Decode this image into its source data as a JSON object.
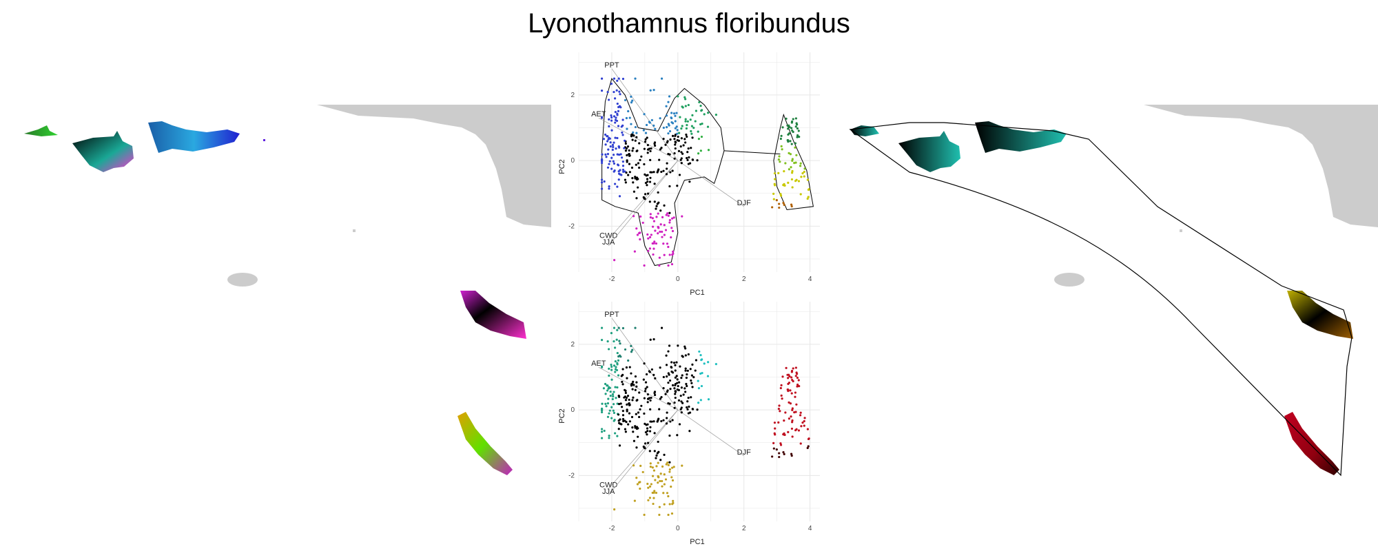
{
  "title": "Lyonothamnus floribundus",
  "chart_data": [
    {
      "type": "scatter",
      "panel": "top",
      "title": "",
      "xlabel": "PC1",
      "ylabel": "PC2",
      "xlim": [
        -3,
        4.3
      ],
      "ylim": [
        -3.4,
        3.3
      ],
      "xticks": [
        "-2",
        "0",
        "2",
        "4"
      ],
      "yticks": [
        "2",
        "0",
        "-2"
      ],
      "grid": true,
      "loadings": [
        {
          "label": "PPT",
          "x": -2.0,
          "y": 2.8
        },
        {
          "label": "AET",
          "x": -2.4,
          "y": 1.3
        },
        {
          "label": "DJF",
          "x": 2.0,
          "y": -1.4
        },
        {
          "label": "CWD",
          "x": -2.1,
          "y": -2.4
        },
        {
          "label": "JJA",
          "x": -2.1,
          "y": -2.6
        }
      ],
      "clusters": [
        {
          "name": "main",
          "cx": -0.8,
          "cy": 0.3,
          "points": 420
        },
        {
          "name": "east",
          "cx": 3.5,
          "cy": 0.2,
          "points": 90
        }
      ]
    },
    {
      "type": "scatter",
      "panel": "bottom",
      "title": "",
      "xlabel": "PC1",
      "ylabel": "PC2",
      "xlim": [
        -3,
        4.3
      ],
      "ylim": [
        -3.4,
        3.3
      ],
      "xticks": [
        "-2",
        "0",
        "2",
        "4"
      ],
      "yticks": [
        "2",
        "0",
        "-2"
      ],
      "grid": true,
      "loadings": [
        {
          "label": "PPT",
          "x": -2.0,
          "y": 2.8
        },
        {
          "label": "AET",
          "x": -2.4,
          "y": 1.3
        },
        {
          "label": "DJF",
          "x": 2.0,
          "y": -1.4
        },
        {
          "label": "CWD",
          "x": -2.1,
          "y": -2.4
        },
        {
          "label": "JJA",
          "x": -2.1,
          "y": -2.6
        }
      ],
      "clusters": [
        {
          "name": "main",
          "cx": -0.8,
          "cy": 0.3,
          "points": 420
        },
        {
          "name": "east",
          "cx": 3.5,
          "cy": 0.2,
          "points": 90
        }
      ]
    }
  ],
  "colors": {
    "land": "#cccccc",
    "hull": "#000000",
    "grid": "#e6e6e6"
  }
}
